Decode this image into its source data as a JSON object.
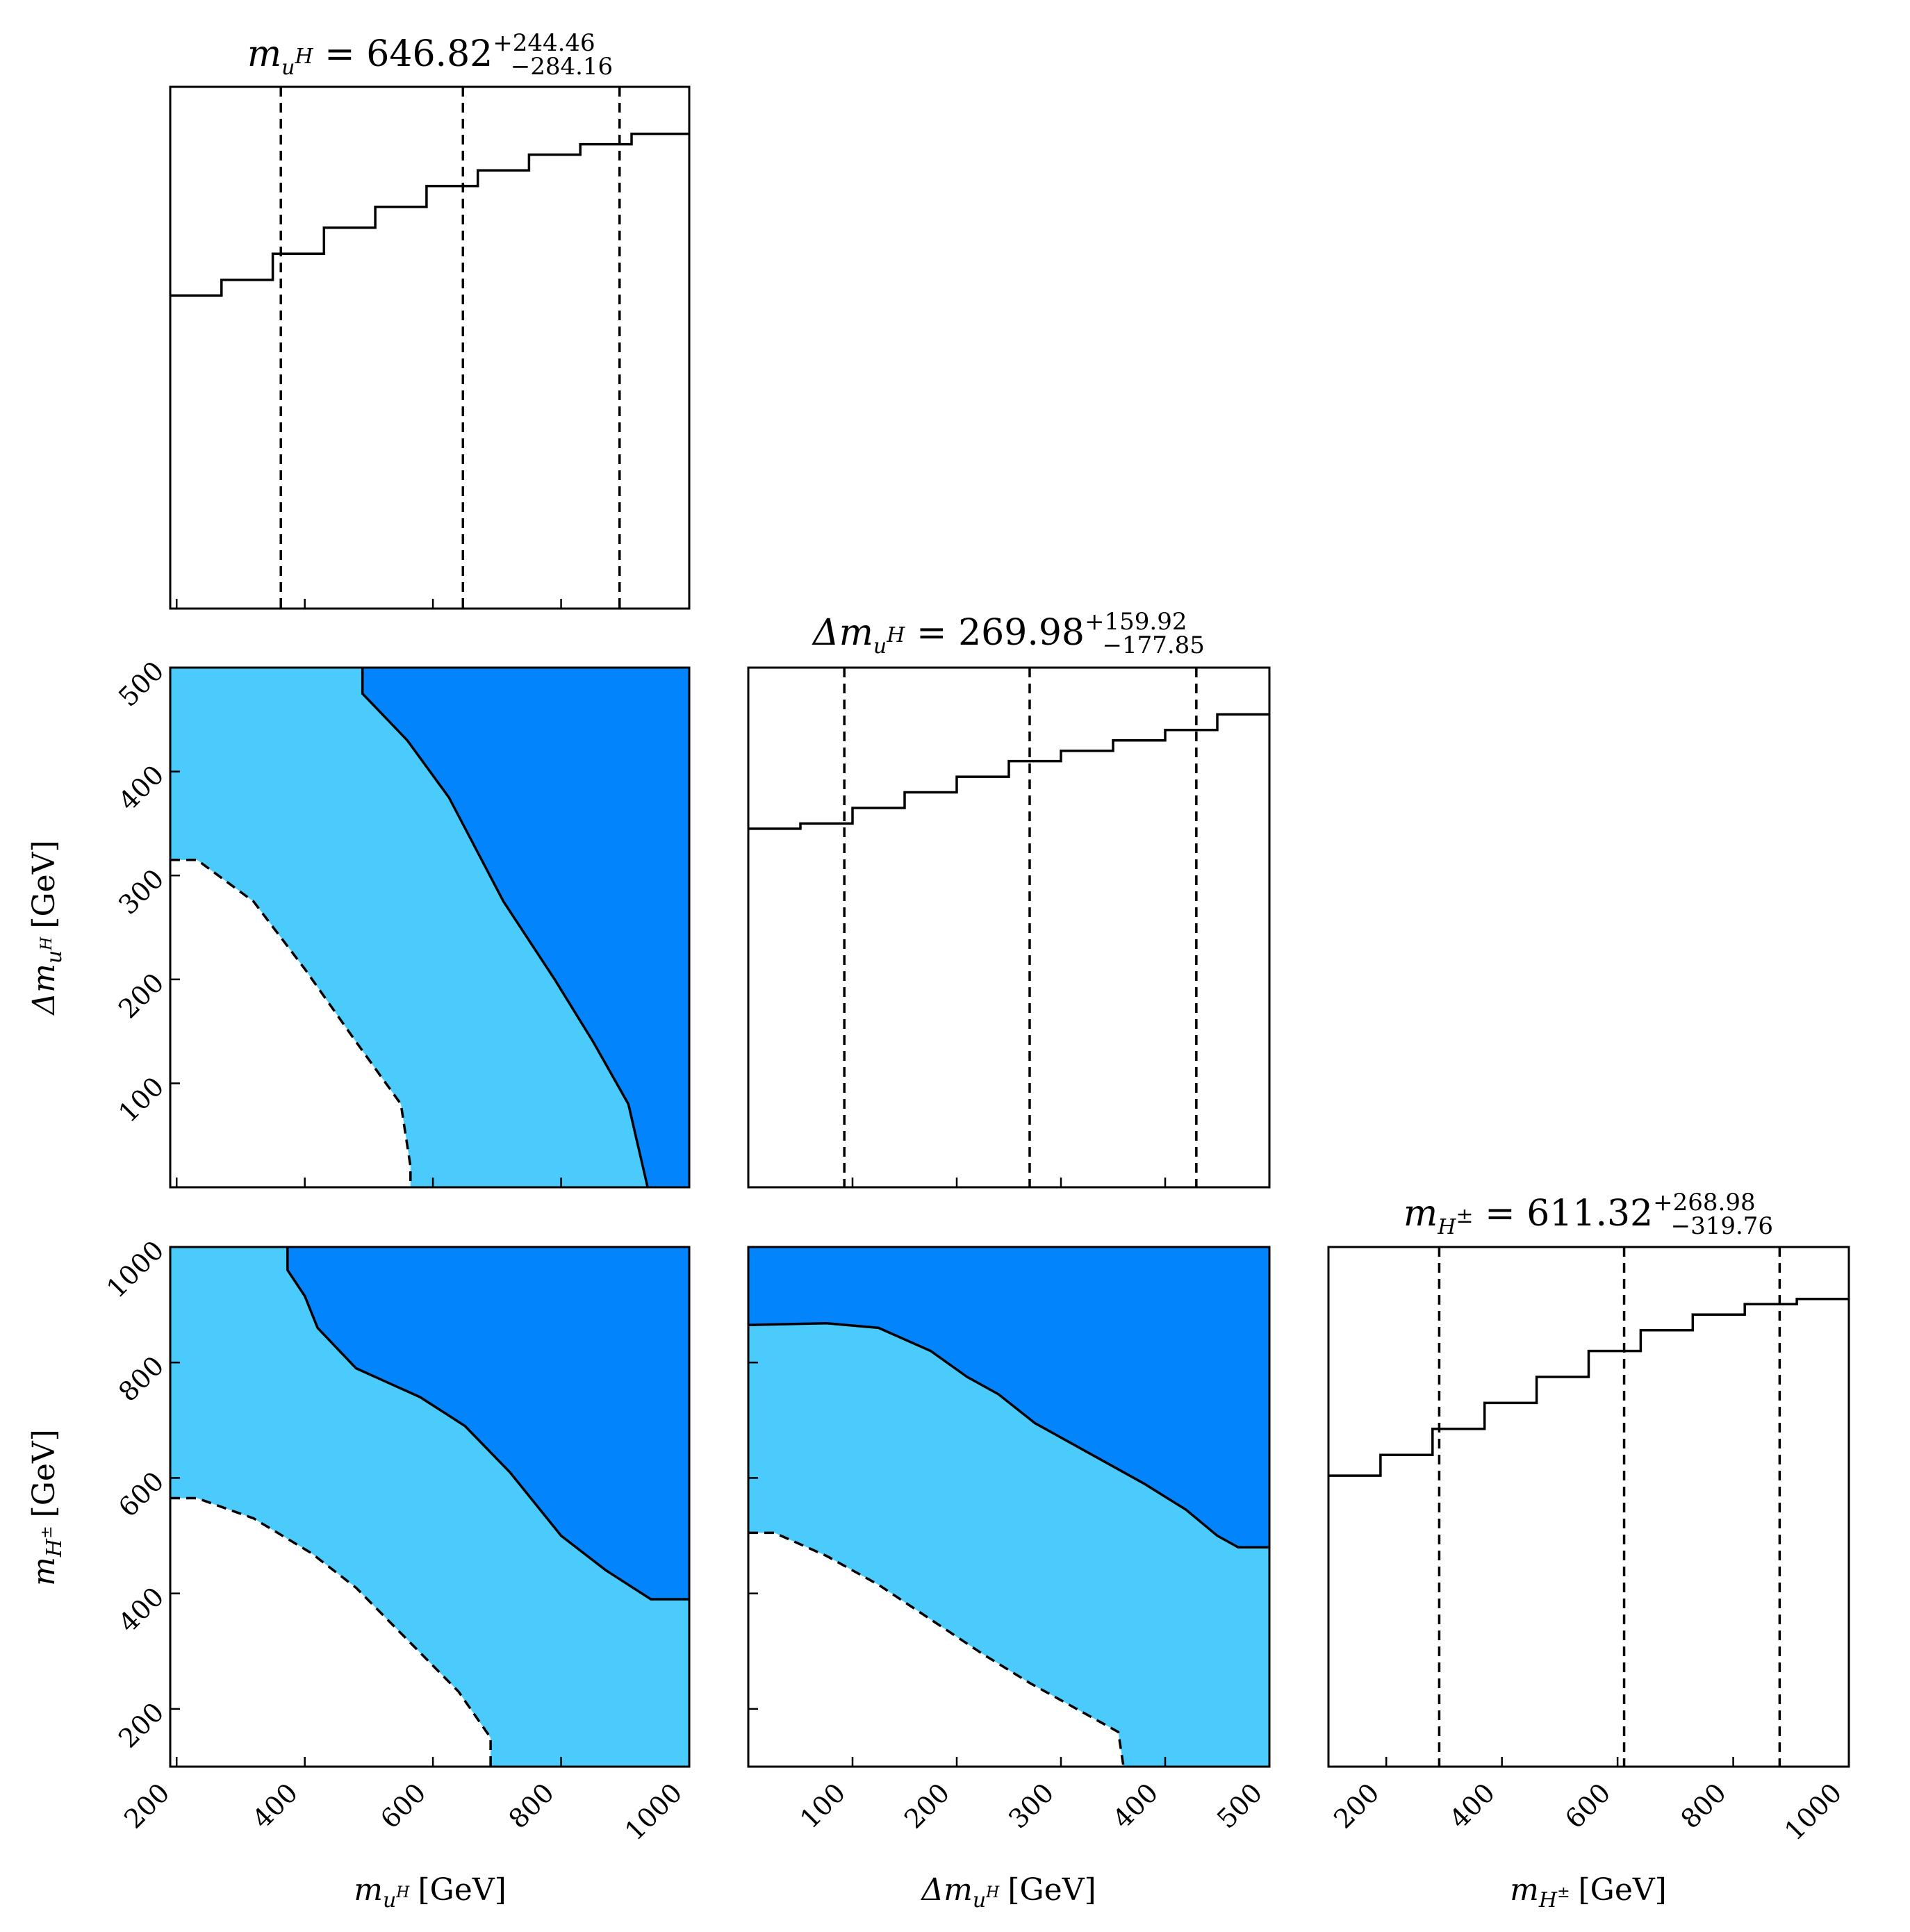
{
  "colors": {
    "line": "#000000",
    "inner": "#0284fc",
    "outer": "#4bcafc",
    "background": "#ffffff"
  },
  "chart_data": [
    {
      "type": "histogram",
      "panel": "m_uH marginal",
      "title": {
        "symbol": "m",
        "sub": "u",
        "subsup": "H",
        "value": "646.82",
        "plus": "+244.46",
        "minus": "−284.16"
      },
      "xlim": [
        190,
        1000
      ],
      "ylim": [
        0,
        1.0
      ],
      "xticks": [
        200,
        400,
        600,
        800,
        1000
      ],
      "tick_labels_shown": false,
      "bin_edges": [
        190,
        270,
        350,
        430,
        510,
        590,
        670,
        750,
        830,
        910,
        1000
      ],
      "values": [
        0.6,
        0.63,
        0.68,
        0.73,
        0.77,
        0.81,
        0.84,
        0.87,
        0.89,
        0.91
      ],
      "quantile_lines": [
        362.66,
        646.82,
        891.28
      ]
    },
    {
      "type": "contour",
      "panel": "m_uH vs Δm_uH",
      "xlim": [
        190,
        1000
      ],
      "ylim": [
        0,
        500
      ],
      "xticks": [
        200,
        400,
        600,
        800,
        1000
      ],
      "yticks": [
        100,
        200,
        300,
        400,
        500
      ],
      "ytick_labels": [
        "100",
        "200",
        "300",
        "400",
        "500"
      ],
      "ylabel": {
        "prefix": "Δm",
        "sub": "u",
        "subsup": "H",
        "unit": "[GeV]"
      },
      "inner_region": {
        "style": "solid",
        "boundary": [
          [
            490,
            500
          ],
          [
            490,
            475
          ],
          [
            560,
            430
          ],
          [
            625,
            375
          ],
          [
            710,
            275
          ],
          [
            790,
            200
          ],
          [
            850,
            140
          ],
          [
            905,
            80
          ],
          [
            935,
            0
          ]
        ]
      },
      "outer_region": {
        "style": "dashed",
        "boundary": [
          [
            190,
            315
          ],
          [
            232,
            315
          ],
          [
            320,
            275
          ],
          [
            400,
            210
          ],
          [
            480,
            140
          ],
          [
            550,
            80
          ],
          [
            565,
            20
          ],
          [
            565,
            0
          ]
        ]
      }
    },
    {
      "type": "histogram",
      "panel": "Δm_uH marginal",
      "title": {
        "symbol": "Δm",
        "sub": "u",
        "subsup": "H",
        "value": "269.98",
        "plus": "+159.92",
        "minus": "−177.85"
      },
      "xlim": [
        0,
        500
      ],
      "ylim": [
        0,
        1.0
      ],
      "xticks": [
        100,
        200,
        300,
        400,
        500
      ],
      "tick_labels_shown": false,
      "bin_edges": [
        0,
        50,
        100,
        150,
        200,
        250,
        300,
        350,
        400,
        450,
        500
      ],
      "values": [
        0.69,
        0.7,
        0.73,
        0.76,
        0.79,
        0.82,
        0.84,
        0.86,
        0.88,
        0.91
      ],
      "quantile_lines": [
        92.13,
        269.98,
        429.9
      ]
    },
    {
      "type": "contour",
      "panel": "m_uH vs m_H±",
      "xlim": [
        190,
        1000
      ],
      "ylim": [
        100,
        1000
      ],
      "xticks": [
        200,
        400,
        600,
        800,
        1000
      ],
      "xtick_labels": [
        "200",
        "400",
        "600",
        "800",
        "1000"
      ],
      "yticks": [
        200,
        400,
        600,
        800,
        1000
      ],
      "ytick_labels": [
        "200",
        "400",
        "600",
        "800",
        "1000"
      ],
      "xlabel": {
        "prefix": "m",
        "sub": "u",
        "subsup": "H",
        "unit": "[GeV]"
      },
      "ylabel": {
        "prefix": "m",
        "sub": "H",
        "subsup": "±",
        "unit": "[GeV]"
      },
      "inner_region": {
        "style": "solid",
        "boundary": [
          [
            373,
            1000
          ],
          [
            373,
            960
          ],
          [
            400,
            915
          ],
          [
            420,
            860
          ],
          [
            480,
            790
          ],
          [
            520,
            770
          ],
          [
            580,
            740
          ],
          [
            650,
            690
          ],
          [
            720,
            610
          ],
          [
            800,
            500
          ],
          [
            870,
            440
          ],
          [
            940,
            390
          ],
          [
            1000,
            390
          ]
        ]
      },
      "outer_region": {
        "style": "dashed",
        "boundary": [
          [
            190,
            565
          ],
          [
            232,
            565
          ],
          [
            320,
            530
          ],
          [
            410,
            470
          ],
          [
            480,
            410
          ],
          [
            560,
            320
          ],
          [
            640,
            230
          ],
          [
            690,
            150
          ],
          [
            690,
            100
          ]
        ]
      }
    },
    {
      "type": "contour",
      "panel": "Δm_uH vs m_H±",
      "xlim": [
        0,
        500
      ],
      "ylim": [
        100,
        1000
      ],
      "xticks": [
        100,
        200,
        300,
        400,
        500
      ],
      "xtick_labels": [
        "100",
        "200",
        "300",
        "400",
        "500"
      ],
      "yticks": [
        200,
        400,
        600,
        800,
        1000
      ],
      "xlabel": {
        "prefix": "Δm",
        "sub": "u",
        "subsup": "H",
        "unit": "[GeV]"
      },
      "inner_region": {
        "style": "solid",
        "boundary": [
          [
            0,
            865
          ],
          [
            75,
            868
          ],
          [
            125,
            860
          ],
          [
            175,
            820
          ],
          [
            210,
            775
          ],
          [
            240,
            745
          ],
          [
            275,
            695
          ],
          [
            330,
            640
          ],
          [
            380,
            590
          ],
          [
            420,
            545
          ],
          [
            450,
            500
          ],
          [
            470,
            480
          ],
          [
            500,
            480
          ]
        ]
      },
      "outer_region": {
        "style": "dashed",
        "boundary": [
          [
            0,
            505
          ],
          [
            25,
            505
          ],
          [
            75,
            465
          ],
          [
            125,
            415
          ],
          [
            175,
            355
          ],
          [
            225,
            295
          ],
          [
            270,
            245
          ],
          [
            320,
            195
          ],
          [
            355,
            160
          ],
          [
            360,
            100
          ]
        ]
      }
    },
    {
      "type": "histogram",
      "panel": "m_H± marginal",
      "title": {
        "symbol": "m",
        "sub": "H",
        "subsup": "±",
        "value": "611.32",
        "plus": "+268.98",
        "minus": "−319.76"
      },
      "xlim": [
        100,
        1000
      ],
      "ylim": [
        0,
        1.0
      ],
      "xticks": [
        200,
        400,
        600,
        800,
        1000
      ],
      "xtick_labels": [
        "200",
        "400",
        "600",
        "800",
        "1000"
      ],
      "xlabel": {
        "prefix": "m",
        "sub": "H",
        "subsup": "±",
        "unit": "[GeV]"
      },
      "bin_edges": [
        100,
        190,
        280,
        370,
        460,
        550,
        640,
        730,
        820,
        910,
        1000
      ],
      "values": [
        0.56,
        0.6,
        0.65,
        0.7,
        0.75,
        0.8,
        0.84,
        0.87,
        0.89,
        0.9
      ],
      "quantile_lines": [
        291.56,
        611.32,
        880.3
      ]
    }
  ]
}
